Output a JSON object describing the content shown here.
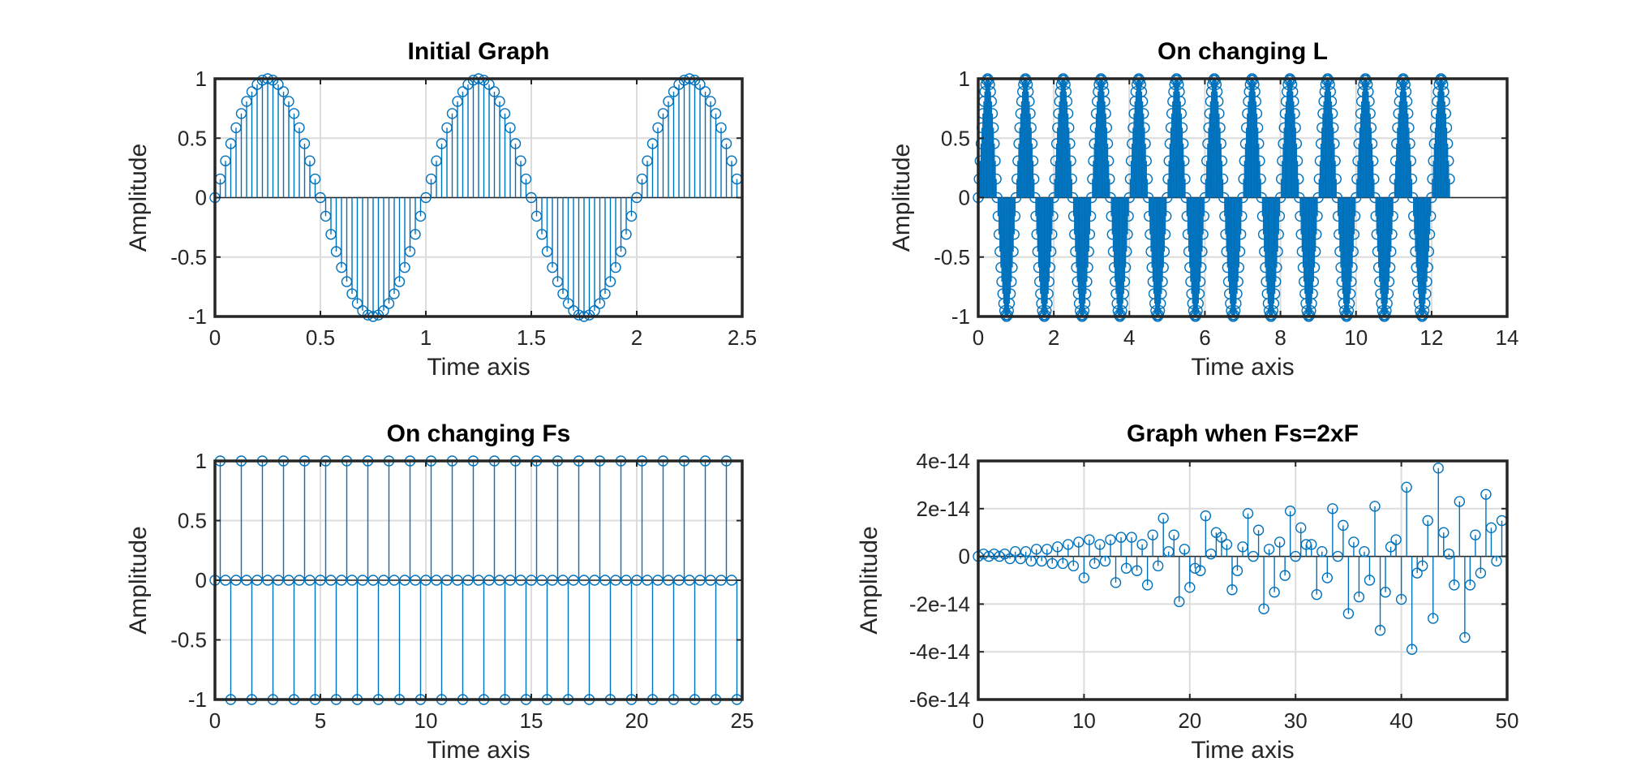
{
  "figure": {
    "background": "#ffffff",
    "series_color": "#0072bd"
  },
  "chart_data": [
    {
      "type": "stem",
      "title": "Initial Graph",
      "xlabel": "Time axis",
      "ylabel": "Amplitude",
      "xlim": [
        0,
        2.5
      ],
      "ylim": [
        -1,
        1
      ],
      "xticks": [
        0,
        0.5,
        1,
        1.5,
        2,
        2.5
      ],
      "xtick_labels": [
        "0",
        "0.5",
        "1",
        "1.5",
        "2",
        "2.5"
      ],
      "yticks": [
        -1,
        -0.5,
        0,
        0.5,
        1
      ],
      "ytick_labels": [
        "-1",
        "-0.5",
        "0",
        "0.5",
        "1"
      ],
      "grid": true,
      "signal": {
        "kind": "sine",
        "frequency": 1,
        "sample_rate": 40,
        "x_start": 0,
        "x_end": 2.475
      }
    },
    {
      "type": "stem",
      "title": "On changing L",
      "xlabel": "Time axis",
      "ylabel": "Amplitude",
      "xlim": [
        0,
        14
      ],
      "ylim": [
        -1,
        1
      ],
      "xticks": [
        0,
        2,
        4,
        6,
        8,
        10,
        12,
        14
      ],
      "xtick_labels": [
        "0",
        "2",
        "4",
        "6",
        "8",
        "10",
        "12",
        "14"
      ],
      "yticks": [
        -1,
        -0.5,
        0,
        0.5,
        1
      ],
      "ytick_labels": [
        "-1",
        "-0.5",
        "0",
        "0.5",
        "1"
      ],
      "grid": true,
      "signal": {
        "kind": "sine",
        "frequency": 1,
        "sample_rate": 40,
        "x_start": 0,
        "x_end": 12.475
      }
    },
    {
      "type": "stem",
      "title": "On changing Fs",
      "xlabel": "Time axis",
      "ylabel": "Amplitude",
      "xlim": [
        0,
        25
      ],
      "ylim": [
        -1,
        1
      ],
      "xticks": [
        0,
        5,
        10,
        15,
        20,
        25
      ],
      "xtick_labels": [
        "0",
        "5",
        "10",
        "15",
        "20",
        "25"
      ],
      "yticks": [
        -1,
        -0.5,
        0,
        0.5,
        1
      ],
      "ytick_labels": [
        "-1",
        "-0.5",
        "0",
        "0.5",
        "1"
      ],
      "grid": true,
      "signal": {
        "kind": "sine",
        "frequency": 1,
        "sample_rate": 4,
        "x_start": 0,
        "x_end": 24.75
      }
    },
    {
      "type": "stem",
      "title": "Graph when Fs=2xF",
      "xlabel": "Time axis",
      "ylabel": "Amplitude",
      "xlim": [
        0,
        50
      ],
      "ylim": [
        -6e-14,
        4e-14
      ],
      "xticks": [
        0,
        10,
        20,
        30,
        40,
        50
      ],
      "xtick_labels": [
        "0",
        "10",
        "20",
        "30",
        "40",
        "50"
      ],
      "yticks": [
        -6e-14,
        -4e-14,
        -2e-14,
        0,
        2e-14,
        4e-14
      ],
      "ytick_labels": [
        "-6e-14",
        "-4e-14",
        "-2e-14",
        "0",
        "2e-14",
        "4e-14"
      ],
      "grid": true,
      "x": [
        0,
        0.5,
        1,
        1.5,
        2,
        2.5,
        3,
        3.5,
        4,
        4.5,
        5,
        5.5,
        6,
        6.5,
        7,
        7.5,
        8,
        8.5,
        9,
        9.5,
        10,
        10.5,
        11,
        11.5,
        12,
        12.5,
        13,
        13.5,
        14,
        14.5,
        15,
        15.5,
        16,
        16.5,
        17,
        17.5,
        18,
        18.5,
        19,
        19.5,
        20,
        20.5,
        21,
        21.5,
        22,
        22.5,
        23,
        23.5,
        24,
        24.5,
        25,
        25.5,
        26,
        26.5,
        27,
        27.5,
        28,
        28.5,
        29,
        29.5,
        30,
        30.5,
        31,
        31.5,
        32,
        32.5,
        33,
        33.5,
        34,
        34.5,
        35,
        35.5,
        36,
        36.5,
        37,
        37.5,
        38,
        38.5,
        39,
        39.5,
        40,
        40.5,
        41,
        41.5,
        42,
        42.5,
        43,
        43.5,
        44,
        44.5,
        45,
        45.5,
        46,
        46.5,
        47,
        47.5,
        48,
        48.5,
        49,
        49.5
      ],
      "y": [
        0,
        1e-15,
        0,
        1e-15,
        0,
        1e-15,
        -1e-15,
        2e-15,
        -1e-15,
        2e-15,
        -2e-15,
        3e-15,
        -2e-15,
        3e-15,
        -3e-15,
        4e-15,
        -3e-15,
        5e-15,
        -4e-15,
        6e-15,
        -9e-15,
        7e-15,
        -3e-15,
        5e-15,
        -2e-15,
        7e-15,
        -1.1e-14,
        8e-15,
        -5e-15,
        8e-15,
        -6e-15,
        5e-15,
        -1.2e-14,
        9e-15,
        -4e-15,
        1.6e-14,
        2e-15,
        9e-15,
        -1.9e-14,
        3e-15,
        -1.3e-14,
        -5e-15,
        -6e-15,
        1.7e-14,
        1e-15,
        1e-14,
        8e-15,
        5e-15,
        -1.4e-14,
        -6e-15,
        4e-15,
        1.8e-14,
        0,
        1.1e-14,
        -2.2e-14,
        3e-15,
        -1.5e-14,
        6e-15,
        -8e-15,
        1.9e-14,
        0,
        1.2e-14,
        5e-15,
        5e-15,
        -1.6e-14,
        2e-15,
        -9e-15,
        2e-14,
        0,
        1.3e-14,
        -2.4e-14,
        6e-15,
        -1.7e-14,
        2e-15,
        -1e-14,
        2.1e-14,
        -3.1e-14,
        -1.5e-14,
        4e-15,
        7e-15,
        -1.8e-14,
        2.9e-14,
        -3.9e-14,
        -7e-15,
        -4e-15,
        1.5e-14,
        -2.6e-14,
        3.7e-14,
        1e-14,
        1e-15,
        -1.2e-14,
        2.3e-14,
        -3.4e-14,
        -1.2e-14,
        9e-15,
        -7e-15,
        2.6e-14,
        1.2e-14,
        -2e-15,
        1.5e-14
      ]
    }
  ]
}
